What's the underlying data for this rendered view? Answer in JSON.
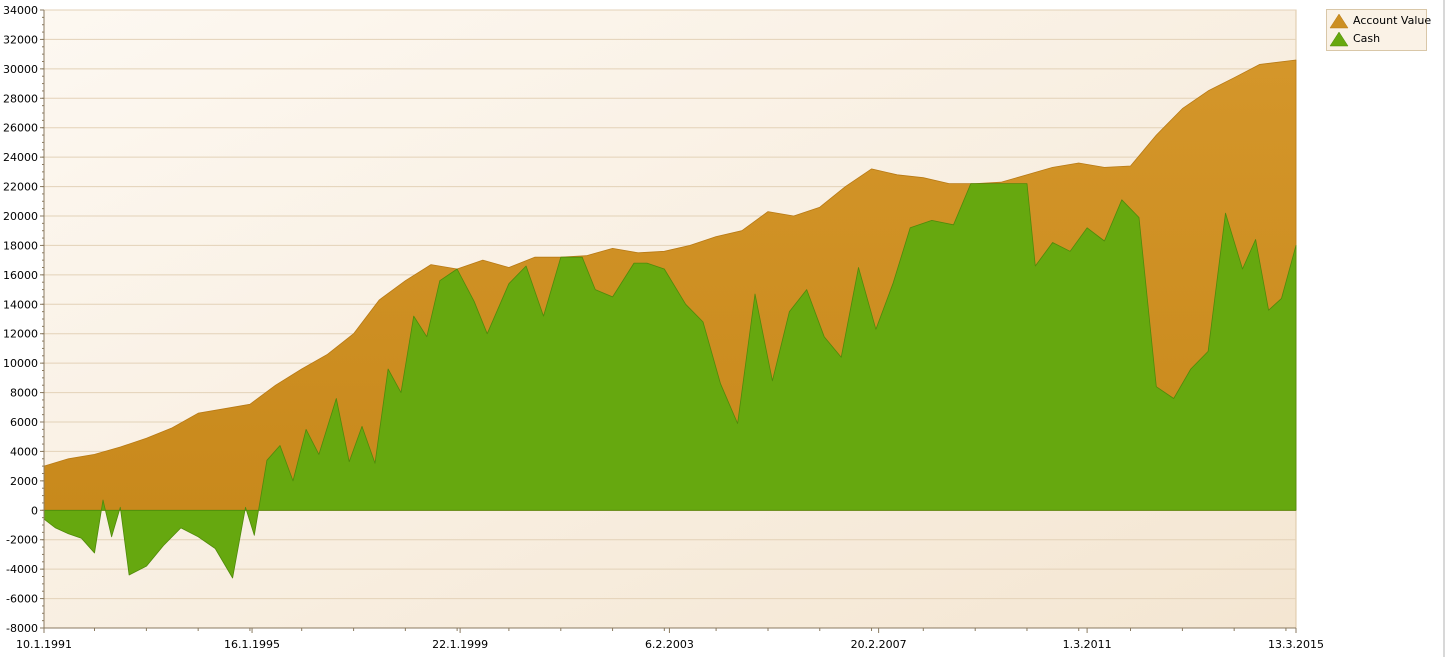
{
  "chart_data": {
    "type": "area",
    "title": "",
    "xlabel": "",
    "ylabel": "",
    "ylim": [
      -8000,
      34000
    ],
    "ytick_step": 2000,
    "xlim": [
      "1991-01-10",
      "2015-03-13"
    ],
    "x_tick_labels": [
      {
        "date": "1991-01-10",
        "label": "10.1.1991"
      },
      {
        "date": "1995-01-16",
        "label": "16.1.1995"
      },
      {
        "date": "1999-01-22",
        "label": "22.1.1999"
      },
      {
        "date": "2003-02-06",
        "label": "6.2.2003"
      },
      {
        "date": "2007-02-20",
        "label": "20.2.2007"
      },
      {
        "date": "2011-03-01",
        "label": "1.3.2011"
      },
      {
        "date": "2015-03-13",
        "label": "13.3.2015"
      }
    ],
    "grid": "horizontal",
    "legend_position": "top-right, outside plot",
    "series": [
      {
        "name": "Account Value",
        "color": "#cc8f22",
        "points": [
          [
            "1991-01-10",
            3000
          ],
          [
            "1991-07-01",
            3500
          ],
          [
            "1992-01-01",
            3800
          ],
          [
            "1992-07-01",
            4300
          ],
          [
            "1993-01-01",
            4900
          ],
          [
            "1993-07-01",
            5600
          ],
          [
            "1994-01-01",
            6600
          ],
          [
            "1994-07-01",
            6900
          ],
          [
            "1995-01-01",
            7200
          ],
          [
            "1995-07-01",
            8500
          ],
          [
            "1996-01-01",
            9600
          ],
          [
            "1996-07-01",
            10600
          ],
          [
            "1997-01-01",
            12000
          ],
          [
            "1997-07-01",
            14300
          ],
          [
            "1998-01-01",
            15600
          ],
          [
            "1998-07-01",
            16700
          ],
          [
            "1999-01-01",
            16400
          ],
          [
            "1999-07-01",
            17000
          ],
          [
            "2000-01-01",
            16500
          ],
          [
            "2000-07-01",
            17200
          ],
          [
            "2001-01-01",
            17200
          ],
          [
            "2001-07-01",
            17300
          ],
          [
            "2002-01-01",
            17800
          ],
          [
            "2002-07-01",
            17500
          ],
          [
            "2003-01-01",
            17600
          ],
          [
            "2003-07-01",
            18000
          ],
          [
            "2004-01-01",
            18600
          ],
          [
            "2004-07-01",
            19000
          ],
          [
            "2005-01-01",
            20300
          ],
          [
            "2005-07-01",
            20000
          ],
          [
            "2006-01-01",
            20600
          ],
          [
            "2006-07-01",
            22000
          ],
          [
            "2007-01-01",
            23200
          ],
          [
            "2007-07-01",
            22800
          ],
          [
            "2008-01-01",
            22600
          ],
          [
            "2008-07-01",
            22200
          ],
          [
            "2009-01-01",
            22200
          ],
          [
            "2009-07-01",
            22300
          ],
          [
            "2010-01-01",
            22800
          ],
          [
            "2010-07-01",
            23300
          ],
          [
            "2011-01-01",
            23600
          ],
          [
            "2011-07-01",
            23300
          ],
          [
            "2012-01-01",
            23400
          ],
          [
            "2012-07-01",
            25500
          ],
          [
            "2013-01-01",
            27300
          ],
          [
            "2013-07-01",
            28500
          ],
          [
            "2014-01-01",
            29400
          ],
          [
            "2014-07-01",
            30300
          ],
          [
            "2015-03-13",
            30600
          ]
        ]
      },
      {
        "name": "Cash",
        "color": "#66a80f",
        "points": [
          [
            "1991-01-10",
            -600
          ],
          [
            "1991-04-01",
            -1200
          ],
          [
            "1991-07-01",
            -1600
          ],
          [
            "1991-10-01",
            -1900
          ],
          [
            "1992-01-01",
            -2900
          ],
          [
            "1992-03-01",
            700
          ],
          [
            "1992-05-01",
            -1800
          ],
          [
            "1992-07-01",
            200
          ],
          [
            "1992-09-01",
            -4400
          ],
          [
            "1993-01-01",
            -3800
          ],
          [
            "1993-05-01",
            -2400
          ],
          [
            "1993-09-01",
            -1200
          ],
          [
            "1994-01-01",
            -1800
          ],
          [
            "1994-05-01",
            -2600
          ],
          [
            "1994-09-01",
            -4600
          ],
          [
            "1994-12-01",
            200
          ],
          [
            "1995-02-01",
            -1700
          ],
          [
            "1995-05-01",
            3400
          ],
          [
            "1995-08-01",
            4400
          ],
          [
            "1995-11-01",
            2000
          ],
          [
            "1996-02-01",
            5500
          ],
          [
            "1996-05-01",
            3800
          ],
          [
            "1996-09-01",
            7600
          ],
          [
            "1996-12-01",
            3300
          ],
          [
            "1997-03-01",
            5700
          ],
          [
            "1997-06-01",
            3200
          ],
          [
            "1997-09-01",
            9600
          ],
          [
            "1997-12-01",
            8000
          ],
          [
            "1998-03-01",
            13200
          ],
          [
            "1998-06-01",
            11800
          ],
          [
            "1998-09-01",
            15600
          ],
          [
            "1999-01-01",
            16400
          ],
          [
            "1999-05-01",
            14200
          ],
          [
            "1999-08-01",
            12000
          ],
          [
            "2000-01-01",
            15400
          ],
          [
            "2000-05-01",
            16600
          ],
          [
            "2000-09-01",
            13200
          ],
          [
            "2001-01-01",
            17200
          ],
          [
            "2001-06-01",
            17200
          ],
          [
            "2001-09-01",
            15000
          ],
          [
            "2002-01-01",
            14500
          ],
          [
            "2002-06-01",
            16800
          ],
          [
            "2002-09-01",
            16800
          ],
          [
            "2003-01-01",
            16400
          ],
          [
            "2003-06-01",
            14000
          ],
          [
            "2003-10-01",
            12800
          ],
          [
            "2004-02-01",
            8600
          ],
          [
            "2004-06-01",
            5900
          ],
          [
            "2004-10-01",
            14700
          ],
          [
            "2005-02-01",
            8800
          ],
          [
            "2005-06-01",
            13500
          ],
          [
            "2005-10-01",
            15000
          ],
          [
            "2006-02-01",
            11800
          ],
          [
            "2006-06-01",
            10400
          ],
          [
            "2006-10-01",
            16500
          ],
          [
            "2007-02-01",
            12300
          ],
          [
            "2007-06-01",
            15400
          ],
          [
            "2007-10-01",
            19200
          ],
          [
            "2008-03-01",
            19700
          ],
          [
            "2008-08-01",
            19400
          ],
          [
            "2008-12-01",
            22200
          ],
          [
            "2009-06-01",
            22200
          ],
          [
            "2010-01-01",
            22200
          ],
          [
            "2010-03-01",
            16600
          ],
          [
            "2010-07-01",
            18200
          ],
          [
            "2010-11-01",
            17600
          ],
          [
            "2011-03-01",
            19200
          ],
          [
            "2011-07-01",
            18300
          ],
          [
            "2011-11-01",
            21100
          ],
          [
            "2012-03-01",
            19900
          ],
          [
            "2012-07-01",
            8400
          ],
          [
            "2012-11-01",
            7600
          ],
          [
            "2013-03-01",
            9600
          ],
          [
            "2013-07-01",
            10800
          ],
          [
            "2013-11-01",
            20200
          ],
          [
            "2014-03-01",
            16400
          ],
          [
            "2014-06-01",
            18400
          ],
          [
            "2014-09-01",
            13600
          ],
          [
            "2014-12-01",
            14400
          ],
          [
            "2015-03-13",
            18000
          ]
        ]
      }
    ]
  }
}
